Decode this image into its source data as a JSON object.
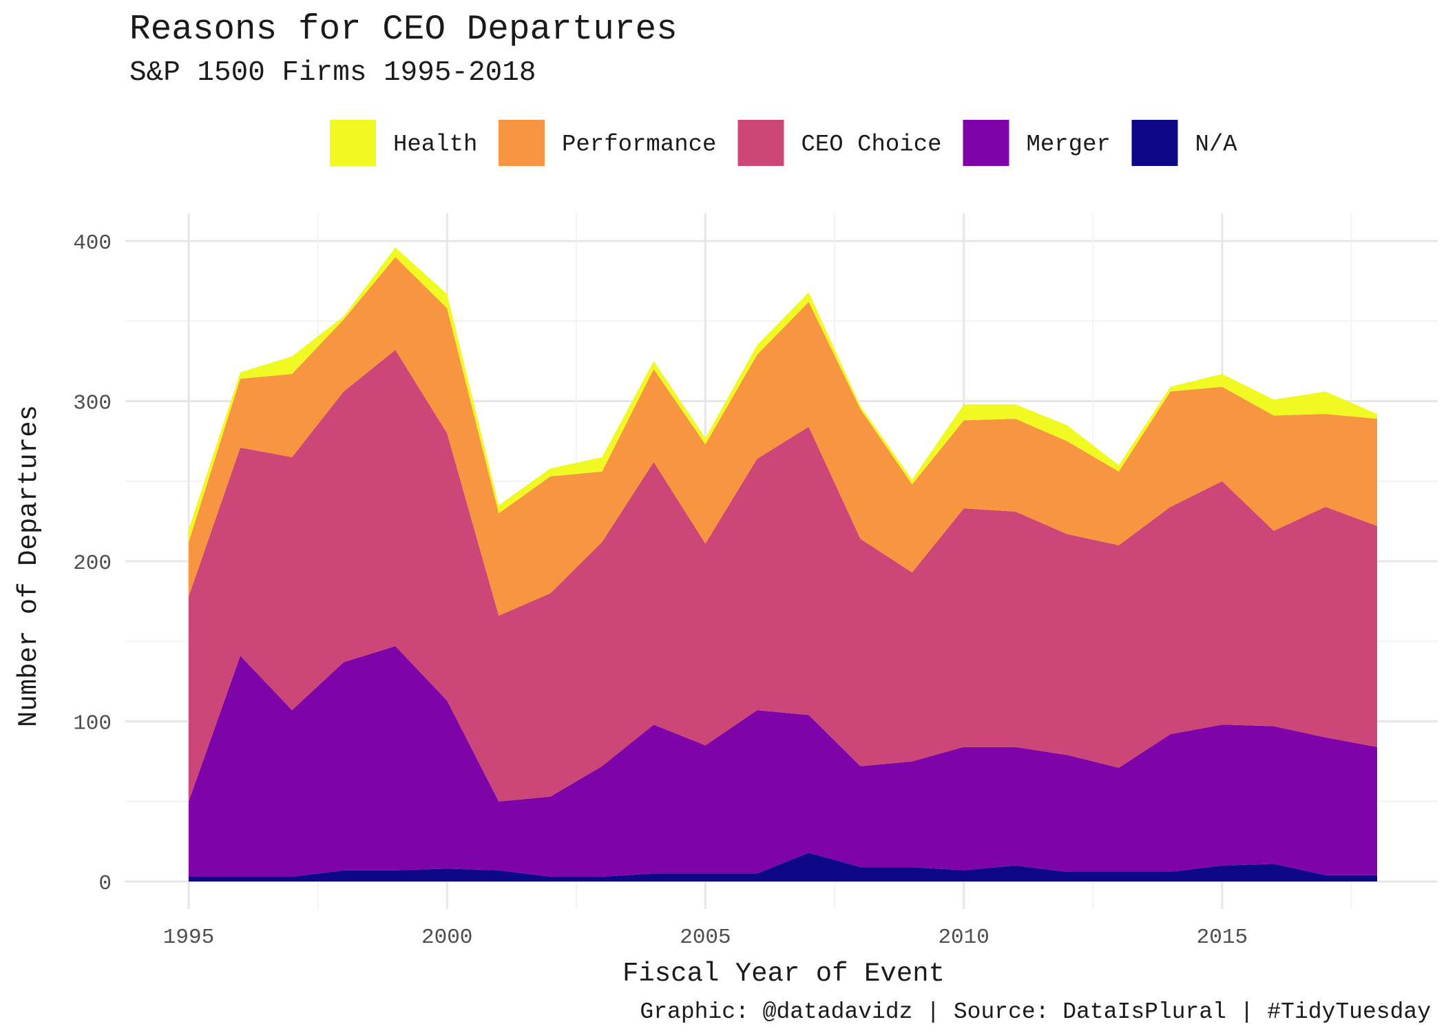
{
  "chart_data": {
    "type": "area",
    "stacked": true,
    "title": "Reasons for CEO Departures",
    "subtitle": "S&P 1500 Firms 1995-2018",
    "xlabel": "Fiscal Year of Event",
    "ylabel": "Number of Departures",
    "caption": "Graphic: @datadavidz | Source: DataIsPlural | #TidyTuesday",
    "x": [
      1995,
      1996,
      1997,
      1998,
      1999,
      2000,
      2001,
      2002,
      2003,
      2004,
      2005,
      2006,
      2007,
      2008,
      2009,
      2010,
      2011,
      2012,
      2013,
      2014,
      2015,
      2016,
      2017,
      2018
    ],
    "xlim": [
      1995,
      2018
    ],
    "ylim": [
      0,
      400
    ],
    "x_ticks": [
      "1995",
      "2000",
      "2005",
      "2010",
      "2015"
    ],
    "y_ticks": [
      "0",
      "100",
      "200",
      "300",
      "400"
    ],
    "grid": true,
    "legend_position": "top",
    "legend_order": [
      "Health",
      "Performance",
      "CEO Choice",
      "Merger",
      "N/A"
    ],
    "series": [
      {
        "name": "N/A",
        "color": "#0d0887",
        "values": [
          3,
          3,
          3,
          7,
          7,
          8,
          7,
          3,
          3,
          5,
          5,
          5,
          18,
          9,
          9,
          7,
          10,
          6,
          6,
          6,
          10,
          11,
          4,
          4
        ]
      },
      {
        "name": "Merger",
        "color": "#7e03a8",
        "values": [
          47,
          138,
          104,
          130,
          140,
          105,
          43,
          50,
          69,
          93,
          80,
          102,
          86,
          63,
          66,
          77,
          74,
          73,
          65,
          86,
          88,
          86,
          86,
          80
        ]
      },
      {
        "name": "CEO Choice",
        "color": "#cc4778",
        "values": [
          128,
          130,
          158,
          169,
          185,
          167,
          116,
          127,
          140,
          164,
          126,
          157,
          180,
          142,
          118,
          149,
          147,
          138,
          139,
          142,
          152,
          122,
          144,
          138
        ]
      },
      {
        "name": "Performance",
        "color": "#f89540",
        "values": [
          34,
          43,
          52,
          45,
          58,
          78,
          64,
          73,
          44,
          58,
          62,
          65,
          78,
          81,
          55,
          55,
          58,
          58,
          46,
          72,
          59,
          72,
          58,
          67
        ]
      },
      {
        "name": "Health",
        "color": "#f0f921",
        "values": [
          8,
          4,
          11,
          2,
          6,
          9,
          5,
          5,
          9,
          5,
          4,
          6,
          6,
          2,
          3,
          10,
          9,
          10,
          4,
          3,
          8,
          10,
          14,
          3
        ]
      }
    ]
  }
}
